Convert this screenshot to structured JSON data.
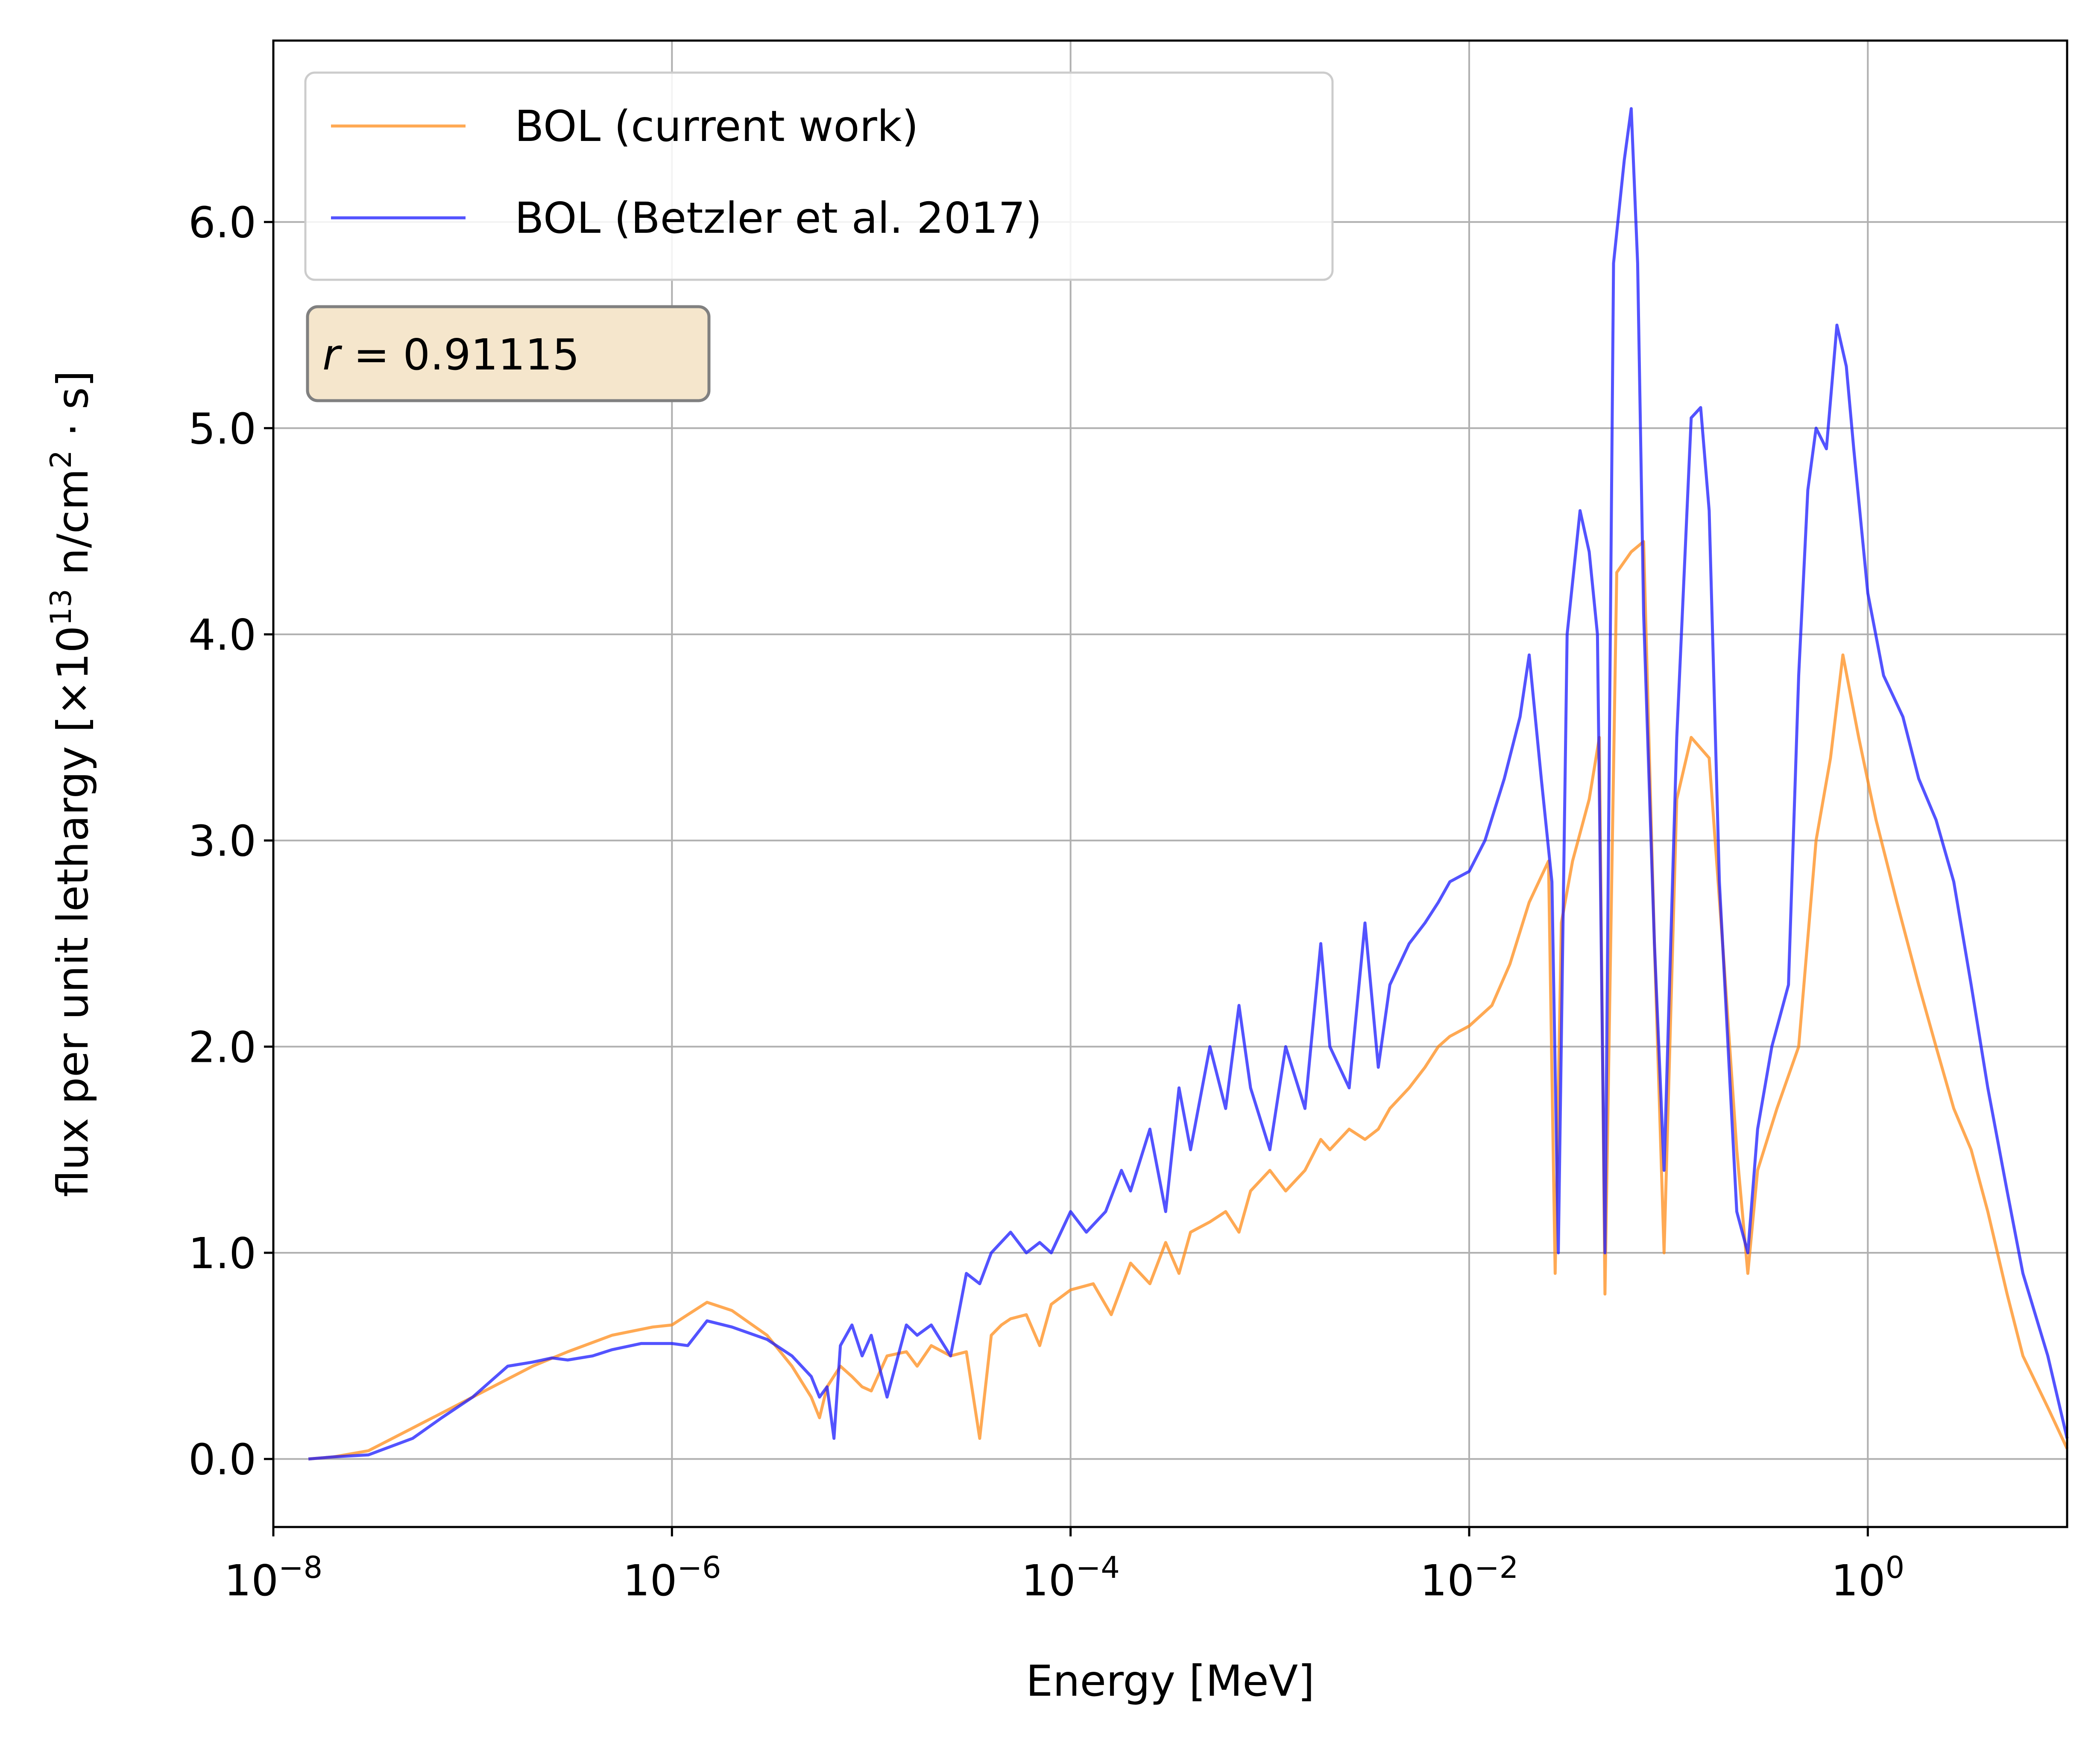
{
  "chart_data": {
    "type": "line",
    "title": "",
    "xlabel": "Energy [MeV]",
    "ylabel": "flux per unit lethargy [×10¹³ n/cm² · s]",
    "ylabel_parts": {
      "pre": "flux per unit lethargy [×10",
      "exp": "13",
      "mid": " n/cm",
      "exp2": "2",
      "post": " · s]"
    },
    "xscale": "log",
    "xlim": [
      1e-08,
      10
    ],
    "ylim": [
      -0.33,
      6.88
    ],
    "x_ticks": [
      {
        "base": "10",
        "exp": "−8",
        "value": 1e-08
      },
      {
        "base": "10",
        "exp": "−6",
        "value": 1e-06
      },
      {
        "base": "10",
        "exp": "−4",
        "value": 0.0001
      },
      {
        "base": "10",
        "exp": "−2",
        "value": 0.01
      },
      {
        "base": "10",
        "exp": "0",
        "value": 1
      }
    ],
    "y_ticks": [
      {
        "label": "0.0",
        "value": 0
      },
      {
        "label": "1.0",
        "value": 1
      },
      {
        "label": "2.0",
        "value": 2
      },
      {
        "label": "3.0",
        "value": 3
      },
      {
        "label": "4.0",
        "value": 4
      },
      {
        "label": "5.0",
        "value": 5
      },
      {
        "label": "6.0",
        "value": 6
      }
    ],
    "grid": true,
    "legend_position": "top-left",
    "annotation": {
      "label": "r = 0.91115",
      "prefix": "r",
      "value_text": " = 0.91115"
    },
    "colors": {
      "orange": "#ff8c1a",
      "blue": "#1a1aff",
      "annot_bg": "#f5e6cc",
      "grid": "#b0b0b0"
    },
    "series": [
      {
        "name": "BOL (current work)",
        "color": "#ff8c1a",
        "x": [
          1.5e-08,
          2e-08,
          3e-08,
          5e-08,
          1e-07,
          2e-07,
          3e-07,
          5e-07,
          8e-07,
          1e-06,
          1.2e-06,
          1.5e-06,
          2e-06,
          3e-06,
          4e-06,
          5e-06,
          5.5e-06,
          6e-06,
          7e-06,
          8e-06,
          9e-06,
          1e-05,
          1.2e-05,
          1.5e-05,
          1.7e-05,
          2e-05,
          2.5e-05,
          3e-05,
          3.5e-05,
          4e-05,
          4.5e-05,
          5e-05,
          6e-05,
          7e-05,
          8e-05,
          0.0001,
          0.00013,
          0.00016,
          0.0002,
          0.00025,
          0.0003,
          0.00035,
          0.0004,
          0.0005,
          0.0006,
          0.0007,
          0.0008,
          0.001,
          0.0012,
          0.0015,
          0.0018,
          0.002,
          0.0025,
          0.003,
          0.0035,
          0.004,
          0.005,
          0.006,
          0.007,
          0.008,
          0.01,
          0.013,
          0.016,
          0.02,
          0.025,
          0.027,
          0.029,
          0.033,
          0.04,
          0.045,
          0.048,
          0.055,
          0.065,
          0.075,
          0.085,
          0.095,
          0.11,
          0.13,
          0.16,
          0.19,
          0.22,
          0.25,
          0.28,
          0.35,
          0.45,
          0.55,
          0.65,
          0.75,
          0.9,
          1.1,
          1.4,
          1.8,
          2.2,
          2.7,
          3.3,
          4,
          5,
          6,
          8,
          10
        ],
        "y": [
          0.0,
          0.01,
          0.04,
          0.15,
          0.3,
          0.45,
          0.52,
          0.6,
          0.64,
          0.65,
          0.7,
          0.76,
          0.72,
          0.6,
          0.45,
          0.3,
          0.2,
          0.35,
          0.45,
          0.4,
          0.35,
          0.33,
          0.5,
          0.52,
          0.45,
          0.55,
          0.5,
          0.52,
          0.1,
          0.6,
          0.65,
          0.68,
          0.7,
          0.55,
          0.75,
          0.82,
          0.85,
          0.7,
          0.95,
          0.85,
          1.05,
          0.9,
          1.1,
          1.15,
          1.2,
          1.1,
          1.3,
          1.4,
          1.3,
          1.4,
          1.55,
          1.5,
          1.6,
          1.55,
          1.6,
          1.7,
          1.8,
          1.9,
          2.0,
          2.05,
          2.1,
          2.2,
          2.4,
          2.7,
          2.9,
          0.9,
          2.6,
          2.9,
          3.2,
          3.5,
          0.8,
          4.3,
          4.4,
          4.45,
          2.5,
          1.0,
          3.2,
          3.5,
          3.4,
          2.4,
          1.5,
          0.9,
          1.4,
          1.7,
          2.0,
          3.0,
          3.4,
          3.9,
          3.5,
          3.1,
          2.7,
          2.3,
          2.0,
          1.7,
          1.5,
          1.2,
          0.8,
          0.5,
          0.25,
          0.05
        ]
      },
      {
        "name": "BOL (Betzler et al. 2017)",
        "color": "#1a1aff",
        "x": [
          1.5e-08,
          2e-08,
          3e-08,
          5e-08,
          7e-08,
          1e-07,
          1.5e-07,
          2e-07,
          2.5e-07,
          3e-07,
          4e-07,
          5e-07,
          7e-07,
          1e-06,
          1.2e-06,
          1.5e-06,
          2e-06,
          3e-06,
          4e-06,
          5e-06,
          5.5e-06,
          6e-06,
          6.5e-06,
          7e-06,
          8e-06,
          9e-06,
          1e-05,
          1.2e-05,
          1.5e-05,
          1.7e-05,
          2e-05,
          2.5e-05,
          3e-05,
          3.5e-05,
          4e-05,
          5e-05,
          6e-05,
          7e-05,
          8e-05,
          0.0001,
          0.00012,
          0.00015,
          0.00018,
          0.0002,
          0.00025,
          0.0003,
          0.00035,
          0.0004,
          0.0005,
          0.0006,
          0.0007,
          0.0008,
          0.001,
          0.0012,
          0.0015,
          0.0018,
          0.002,
          0.0025,
          0.003,
          0.0035,
          0.004,
          0.005,
          0.006,
          0.007,
          0.008,
          0.01,
          0.012,
          0.015,
          0.018,
          0.02,
          0.023,
          0.026,
          0.028,
          0.031,
          0.036,
          0.04,
          0.044,
          0.048,
          0.053,
          0.06,
          0.065,
          0.07,
          0.075,
          0.085,
          0.095,
          0.11,
          0.13,
          0.145,
          0.16,
          0.18,
          0.22,
          0.25,
          0.28,
          0.33,
          0.4,
          0.45,
          0.5,
          0.55,
          0.62,
          0.7,
          0.78,
          0.85,
          1.0,
          1.2,
          1.5,
          1.8,
          2.2,
          2.7,
          3.3,
          4,
          5,
          6,
          8,
          10
        ],
        "y": [
          0.0,
          0.01,
          0.02,
          0.1,
          0.2,
          0.3,
          0.45,
          0.47,
          0.49,
          0.48,
          0.5,
          0.53,
          0.56,
          0.56,
          0.55,
          0.67,
          0.64,
          0.58,
          0.5,
          0.4,
          0.3,
          0.35,
          0.1,
          0.55,
          0.65,
          0.5,
          0.6,
          0.3,
          0.65,
          0.6,
          0.65,
          0.5,
          0.9,
          0.85,
          1.0,
          1.1,
          1.0,
          1.05,
          1.0,
          1.2,
          1.1,
          1.2,
          1.4,
          1.3,
          1.6,
          1.2,
          1.8,
          1.5,
          2.0,
          1.7,
          2.2,
          1.8,
          1.5,
          2.0,
          1.7,
          2.5,
          2.0,
          1.8,
          2.6,
          1.9,
          2.3,
          2.5,
          2.6,
          2.7,
          2.8,
          2.85,
          3.0,
          3.3,
          3.6,
          3.9,
          3.3,
          2.8,
          1.0,
          4.0,
          4.6,
          4.4,
          4.0,
          1.0,
          5.8,
          6.3,
          6.55,
          5.8,
          4.1,
          2.5,
          1.4,
          3.5,
          5.05,
          5.1,
          4.6,
          2.8,
          1.2,
          1.0,
          1.6,
          2.0,
          2.3,
          3.8,
          4.7,
          5.0,
          4.9,
          5.5,
          5.3,
          4.9,
          4.2,
          3.8,
          3.6,
          3.3,
          3.1,
          2.8,
          2.3,
          1.8,
          1.3,
          0.9,
          0.5,
          0.1
        ]
      }
    ]
  }
}
